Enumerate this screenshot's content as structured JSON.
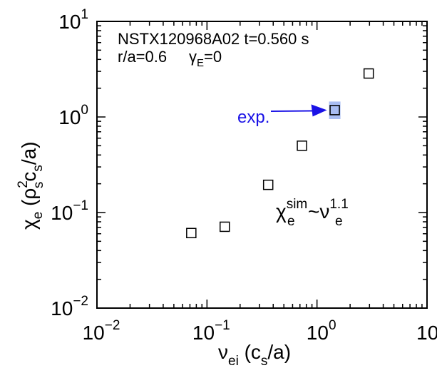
{
  "chart_data": {
    "type": "scatter",
    "x_scale": "log",
    "y_scale": "log",
    "xlim": [
      0.01,
      10
    ],
    "ylim": [
      0.01,
      10
    ],
    "x_ticks": [
      {
        "value": 0.01,
        "base": "10",
        "exp": "−2"
      },
      {
        "value": 0.1,
        "base": "10",
        "exp": "−1"
      },
      {
        "value": 1,
        "base": "10",
        "exp": "0"
      },
      {
        "value": 10,
        "base": "10",
        "exp": "1"
      }
    ],
    "y_ticks": [
      {
        "value": 0.01,
        "base": "10",
        "exp": "−2"
      },
      {
        "value": 0.1,
        "base": "10",
        "exp": "−1"
      },
      {
        "value": 1,
        "base": "10",
        "exp": "0"
      },
      {
        "value": 10,
        "base": "10",
        "exp": "1"
      }
    ],
    "points": [
      {
        "x": 0.072,
        "y": 0.061
      },
      {
        "x": 0.145,
        "y": 0.071
      },
      {
        "x": 0.36,
        "y": 0.195
      },
      {
        "x": 0.73,
        "y": 0.5
      },
      {
        "x": 1.45,
        "y": 1.18
      },
      {
        "x": 2.95,
        "y": 2.85
      }
    ],
    "experimental": {
      "x": 1.45,
      "y_low": 0.95,
      "y_high": 1.45,
      "label": "exp."
    },
    "annotations": {
      "shot": "NSTX120968A02 t=0.560 s",
      "radius": "r/a=0.6",
      "gamma": {
        "base": "γ",
        "sub": "E",
        "rest": "=0"
      },
      "scaling": {
        "chi": "χ",
        "sup": "sim",
        "sub": "e",
        "tilde": "~",
        "nu": "ν",
        "nu_sup": "1.1",
        "nu_sub": "e"
      }
    },
    "xlabel": {
      "nu": "ν",
      "sub": "ei",
      "open": " (c",
      "cs_sub": "s",
      "close": "/a)"
    },
    "ylabel": {
      "chi": "χ",
      "chi_sub": "e",
      "open": " (ρ",
      "rho_sup": "2",
      "rho_sub": "s",
      "c": "c",
      "c_sub": "s",
      "close": "/a)"
    },
    "colors": {
      "marker": "#000000",
      "exp_band": "#a9bdf2",
      "exp_arrow": "#1a12e6"
    }
  }
}
